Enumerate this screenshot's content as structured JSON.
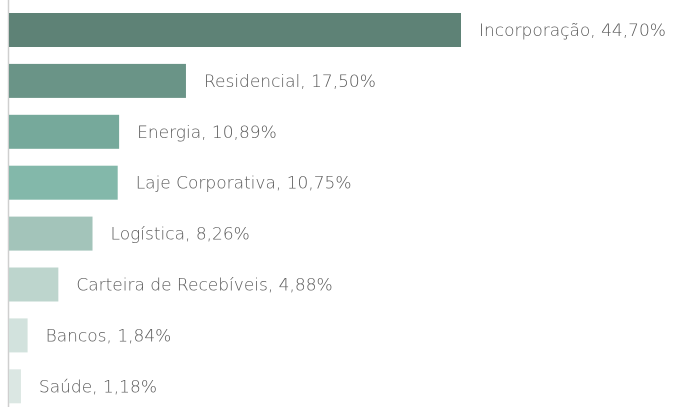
{
  "chart_data": {
    "type": "barh",
    "values": [
      44.7,
      17.5,
      10.89,
      10.75,
      8.26,
      4.88,
      1.84,
      1.18
    ],
    "value_labels": [
      "Incorporação, 44,70%",
      "Residencial, 17,50%",
      "Energia, 10,89%",
      "Laje Corporativa, 10,75%",
      "Logística, 8,26%",
      "Carteira de Recebíveis, 4,88%",
      "Bancos, 1,84%",
      "Saúde, 1,18%"
    ],
    "colors": [
      "#5e8276",
      "#6a9487",
      "#76a99b",
      "#83b8aa",
      "#a3c4ba",
      "#bdd5cd",
      "#d2e2dd",
      "#dbe7e3"
    ],
    "xlim": [
      0,
      44.7
    ]
  }
}
